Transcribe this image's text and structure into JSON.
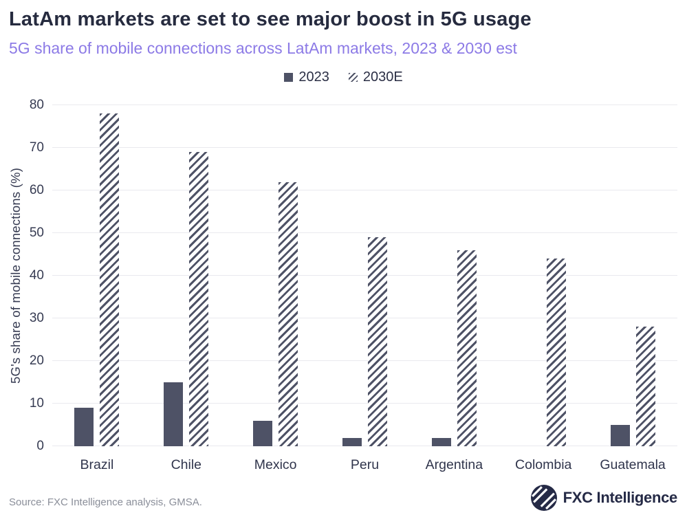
{
  "header": {
    "title": "LatAm markets are set to see major boost in 5G usage",
    "subtitle": "5G share of mobile connections across LatAm markets, 2023 & 2030 est"
  },
  "legend": [
    {
      "label": "2023",
      "style": "solid"
    },
    {
      "label": "2030E",
      "style": "hatch"
    }
  ],
  "chart_data": {
    "type": "bar",
    "categories": [
      "Brazil",
      "Chile",
      "Mexico",
      "Peru",
      "Argentina",
      "Colombia",
      "Guatemala"
    ],
    "series": [
      {
        "name": "2023",
        "style": "solid",
        "values": [
          9,
          15,
          6,
          2,
          2,
          0,
          5
        ]
      },
      {
        "name": "2030E",
        "style": "hatch",
        "values": [
          78,
          69,
          62,
          49,
          46,
          44,
          28
        ]
      }
    ],
    "title": "LatAm markets are set to see major boost in 5G usage",
    "subtitle": "5G share of mobile connections across LatAm markets, 2023 & 2030 est",
    "xlabel": "",
    "ylabel": "5G's share of mobile connections (%)",
    "ylim": [
      0,
      80
    ],
    "ytick_step": 10,
    "grid": "horizontal",
    "legend_position": "top"
  },
  "footer": {
    "source": "Source: FXC Intelligence analysis, GMSA.",
    "brand": "FXC Intelligence"
  },
  "colors": {
    "bar": "#4e5266",
    "accent_purple": "#8c7ae6",
    "title_text": "#262b3f",
    "axis_text": "#363b52",
    "gridline": "#e9e9ee",
    "source_text": "#8a8e99",
    "brand_navy": "#252a46"
  }
}
